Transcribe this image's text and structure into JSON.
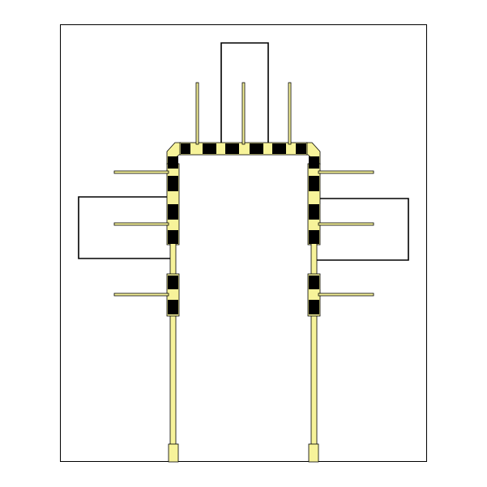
{
  "diagram": {
    "colors": {
      "background": "#ffffff",
      "trace": "#f7f39a",
      "outline": "#000000",
      "block": "#000000"
    },
    "components": [
      {
        "name": "top-loop-wire"
      },
      {
        "name": "left-loop-wire"
      },
      {
        "name": "right-loop-wire"
      }
    ]
  }
}
